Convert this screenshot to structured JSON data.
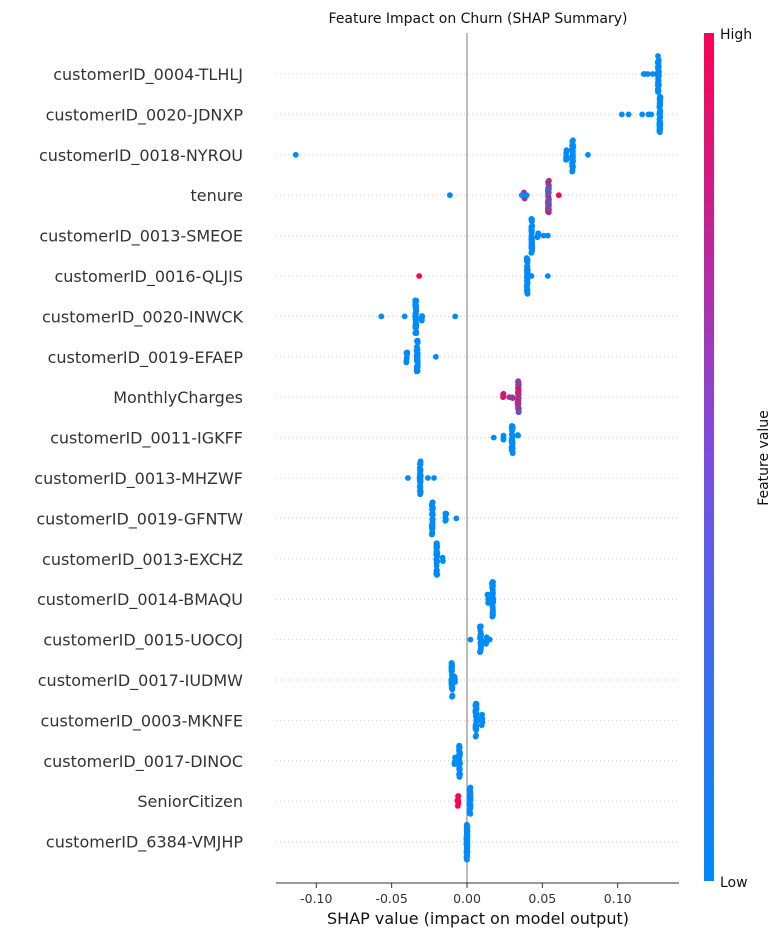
{
  "chart_data": {
    "type": "scatter",
    "title": "Feature Impact on Churn (SHAP Summary)",
    "xlabel": "SHAP value (impact on model output)",
    "xlim": [
      -0.128,
      0.141
    ],
    "xticks": [
      "-0.10",
      "-0.05",
      "0.00",
      "0.05",
      "0.10"
    ],
    "xtick_values": [
      -0.1,
      -0.05,
      0.0,
      0.05,
      0.1
    ],
    "colorbar": {
      "label": "Feature value",
      "high": "High",
      "low": "Low",
      "low_color": "#008bfb",
      "high_color": "#ff0052"
    },
    "features": [
      {
        "name": "customerID_0004-TLHLJ",
        "points": [
          [
            0.127,
            0.0,
            "blue",
            45
          ],
          [
            0.12,
            0.0,
            "blue",
            1
          ],
          [
            0.117,
            0.0,
            "blue",
            1
          ],
          [
            0.123,
            0.0,
            "blue",
            1
          ],
          [
            0.118,
            0.0,
            "blue",
            1
          ]
        ]
      },
      {
        "name": "customerID_0020-JDNXP",
        "points": [
          [
            0.128,
            0.0,
            "blue",
            48
          ],
          [
            0.103,
            0.0,
            "blue",
            1
          ],
          [
            0.107,
            0.0,
            "blue",
            1
          ],
          [
            0.116,
            0.0,
            "blue",
            1
          ],
          [
            0.12,
            0.0,
            "blue",
            1
          ],
          [
            0.122,
            0.0,
            "blue",
            1
          ]
        ]
      },
      {
        "name": "customerID_0018-NYROU",
        "points": [
          [
            0.07,
            0.0,
            "blue",
            40
          ],
          [
            0.066,
            0.0,
            "blue",
            6
          ],
          [
            0.08,
            0.0,
            "blue",
            1
          ],
          [
            -0.114,
            0.0,
            "red",
            1
          ]
        ]
      },
      {
        "name": "tenure",
        "points": [
          [
            0.054,
            0.5,
            "mixed",
            45
          ],
          [
            0.038,
            0.5,
            "mixed",
            4
          ],
          [
            0.036,
            0.0,
            "blue",
            1
          ],
          [
            0.04,
            0.0,
            "blue",
            1
          ],
          [
            0.061,
            1.0,
            "red",
            1
          ],
          [
            -0.011,
            0.0,
            "blue",
            1
          ]
        ]
      },
      {
        "name": "customerID_0013-SMEOE",
        "points": [
          [
            0.043,
            0.0,
            "blue",
            42
          ],
          [
            0.047,
            0.0,
            "blue",
            4
          ],
          [
            0.051,
            0.0,
            "blue",
            1
          ],
          [
            0.054,
            0.0,
            "blue",
            1
          ]
        ]
      },
      {
        "name": "customerID_0016-QLJIS",
        "points": [
          [
            0.04,
            0.0,
            "blue",
            44
          ],
          [
            0.043,
            0.0,
            "blue",
            1
          ],
          [
            0.054,
            0.0,
            "blue",
            1
          ],
          [
            -0.032,
            1.0,
            "red",
            1
          ]
        ]
      },
      {
        "name": "customerID_0020-INWCK",
        "points": [
          [
            -0.034,
            0.0,
            "blue",
            40
          ],
          [
            -0.03,
            0.0,
            "blue",
            5
          ],
          [
            -0.041,
            0.0,
            "blue",
            1
          ],
          [
            -0.057,
            0.0,
            "blue",
            1
          ],
          [
            -0.008,
            0.0,
            "blue",
            1
          ]
        ]
      },
      {
        "name": "customerID_0019-EFAEP",
        "points": [
          [
            -0.033,
            0.0,
            "blue",
            40
          ],
          [
            -0.04,
            0.0,
            "blue",
            8
          ],
          [
            -0.021,
            0.0,
            "blue",
            1
          ]
        ]
      },
      {
        "name": "MonthlyCharges",
        "points": [
          [
            0.034,
            0.6,
            "mixed",
            38
          ],
          [
            0.024,
            0.85,
            "red",
            4
          ],
          [
            0.03,
            0.45,
            "mixed",
            2
          ],
          [
            0.028,
            0.4,
            "mixed",
            1
          ]
        ]
      },
      {
        "name": "customerID_0011-IGKFF",
        "points": [
          [
            0.03,
            0.0,
            "blue",
            36
          ],
          [
            0.024,
            0.0,
            "blue",
            3
          ],
          [
            0.018,
            0.0,
            "blue",
            1
          ],
          [
            0.034,
            0.0,
            "blue",
            2
          ]
        ]
      },
      {
        "name": "customerID_0013-MHZWF",
        "points": [
          [
            -0.031,
            0.0,
            "blue",
            40
          ],
          [
            -0.039,
            0.0,
            "blue",
            1
          ],
          [
            -0.026,
            0.0,
            "blue",
            1
          ],
          [
            -0.022,
            0.0,
            "blue",
            1
          ]
        ]
      },
      {
        "name": "customerID_0019-GFNTW",
        "points": [
          [
            -0.023,
            0.0,
            "blue",
            38
          ],
          [
            -0.014,
            0.0,
            "blue",
            6
          ],
          [
            -0.007,
            0.0,
            "blue",
            1
          ]
        ]
      },
      {
        "name": "customerID_0013-EXCHZ",
        "points": [
          [
            -0.02,
            0.0,
            "blue",
            38
          ],
          [
            -0.016,
            0.0,
            "blue",
            2
          ]
        ]
      },
      {
        "name": "customerID_0014-BMAQU",
        "points": [
          [
            0.017,
            0.0,
            "blue",
            42
          ],
          [
            0.014,
            0.0,
            "blue",
            6
          ]
        ]
      },
      {
        "name": "customerID_0015-UOCOJ",
        "points": [
          [
            0.009,
            0.0,
            "blue",
            30
          ],
          [
            0.013,
            0.0,
            "blue",
            4
          ],
          [
            0.002,
            0.0,
            "blue",
            1
          ],
          [
            0.015,
            0.0,
            "blue",
            1
          ]
        ]
      },
      {
        "name": "customerID_0017-IUDMW",
        "points": [
          [
            -0.01,
            0.0,
            "blue",
            40
          ],
          [
            -0.008,
            0.0,
            "blue",
            4
          ]
        ]
      },
      {
        "name": "customerID_0003-MKNFE",
        "points": [
          [
            0.006,
            0.0,
            "blue",
            40
          ],
          [
            0.01,
            0.0,
            "blue",
            8
          ]
        ]
      },
      {
        "name": "customerID_0017-DINOC",
        "points": [
          [
            -0.005,
            0.0,
            "blue",
            38
          ],
          [
            -0.008,
            0.0,
            "blue",
            6
          ]
        ]
      },
      {
        "name": "SeniorCitizen",
        "points": [
          [
            0.002,
            0.0,
            "blue",
            36
          ],
          [
            -0.006,
            1.0,
            "red",
            10
          ]
        ]
      },
      {
        "name": "customerID_6384-VMJHP",
        "points": [
          [
            0.0,
            0.0,
            "blue",
            60
          ]
        ]
      }
    ]
  }
}
